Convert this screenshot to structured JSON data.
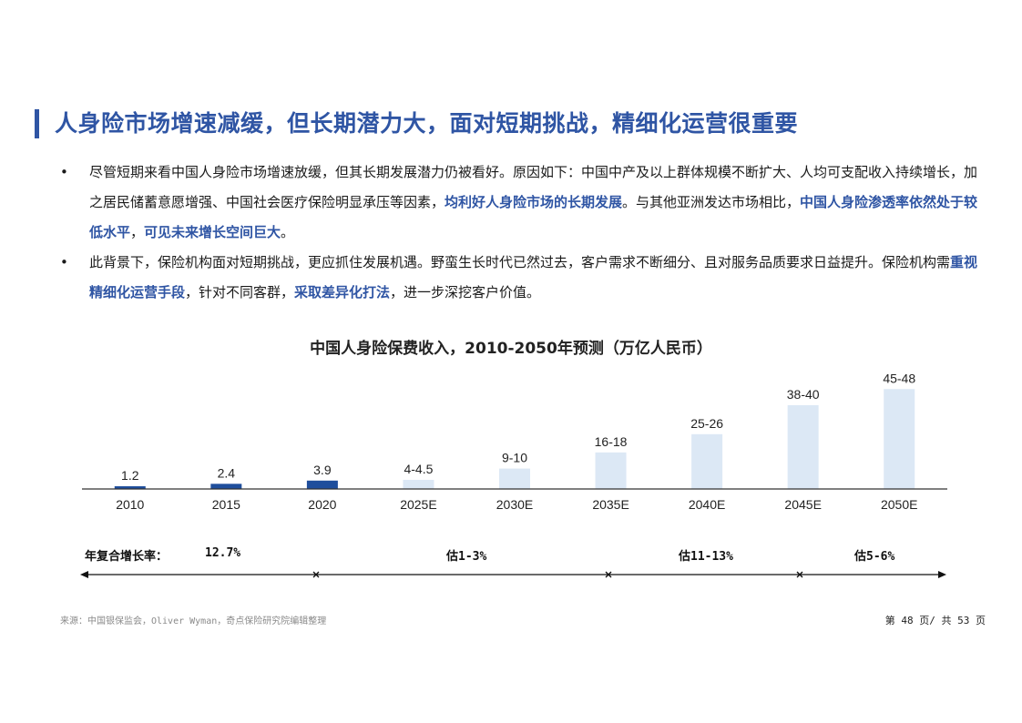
{
  "title": "人身险市场增速减缓，但长期潜力大，面对短期挑战，精细化运营很重要",
  "bullets": [
    {
      "t1": "尽管短期来看中国人身险市场增速放缓，但其长期发展潜力仍被看好。原因如下：中国中产及以上群体规模不断扩大、人均可支配收入持续增长，加之居民储蓄意愿增强、中国社会医疗保险明显承压等因素，",
      "h1": "均利好人身险市场的长期发展",
      "t2": "。与其他亚洲发达市场相比，",
      "h2": "中国人身险渗透率依然处于较低水平",
      "t3": "，",
      "h3": "可见未来增长空间巨大",
      "t4": "。"
    },
    {
      "t1": "此背景下，保险机构面对短期挑战，更应抓住发展机遇。野蛮生长时代已然过去，客户需求不断细分、且对服务品质要求日益提升。保险机构需",
      "h1": "重视精细化运营手段",
      "t2": "，针对不同客群，",
      "h2": "采取差异化打法",
      "t3": "，进一步深挖客户价值。"
    }
  ],
  "bullet_symbol": "•",
  "chart_data": {
    "type": "bar",
    "title": "中国人身险保费收入，2010-2050年预测（万亿人民币）",
    "categories": [
      "2010",
      "2015",
      "2020",
      "2025E",
      "2030E",
      "2035E",
      "2040E",
      "2045E",
      "2050E"
    ],
    "values": [
      1.2,
      2.4,
      3.9,
      4.25,
      9.5,
      17,
      25.5,
      39,
      46.5
    ],
    "value_labels": [
      "1.2",
      "2.4",
      "3.9",
      "4-4.5",
      "9-10",
      "16-18",
      "25-26",
      "38-40",
      "45-48"
    ],
    "kinds": [
      "actual",
      "actual",
      "actual",
      "forecast",
      "forecast",
      "forecast",
      "forecast",
      "forecast",
      "forecast"
    ],
    "colors": {
      "actual": "#1f4e9c",
      "forecast": "#dce8f5"
    },
    "ylim": [
      0,
      50
    ],
    "grid": false
  },
  "growth": {
    "label": "年复合增长率：",
    "actual": "12.7%",
    "segments": [
      "估1-3%",
      "估11-13%",
      "估5-6%"
    ]
  },
  "footer": {
    "source": "来源：中国银保监会，Oliver Wyman，奇点保险研究院编辑整理",
    "page": "第 48 页/ 共 53 页"
  }
}
